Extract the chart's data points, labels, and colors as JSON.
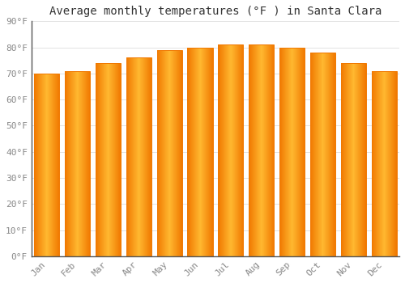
{
  "title": "Average monthly temperatures (°F ) in Santa Clara",
  "months": [
    "Jan",
    "Feb",
    "Mar",
    "Apr",
    "May",
    "Jun",
    "Jul",
    "Aug",
    "Sep",
    "Oct",
    "Nov",
    "Dec"
  ],
  "values": [
    70,
    71,
    74,
    76,
    79,
    80,
    81,
    81,
    80,
    78,
    74,
    71
  ],
  "bar_color_center": "#FFB830",
  "bar_color_edge": "#F07800",
  "background_color": "#FFFFFF",
  "grid_color": "#DDDDDD",
  "text_color": "#888888",
  "spine_color": "#555555",
  "ylim": [
    0,
    90
  ],
  "yticks": [
    0,
    10,
    20,
    30,
    40,
    50,
    60,
    70,
    80,
    90
  ],
  "title_fontsize": 10,
  "tick_fontsize": 8
}
